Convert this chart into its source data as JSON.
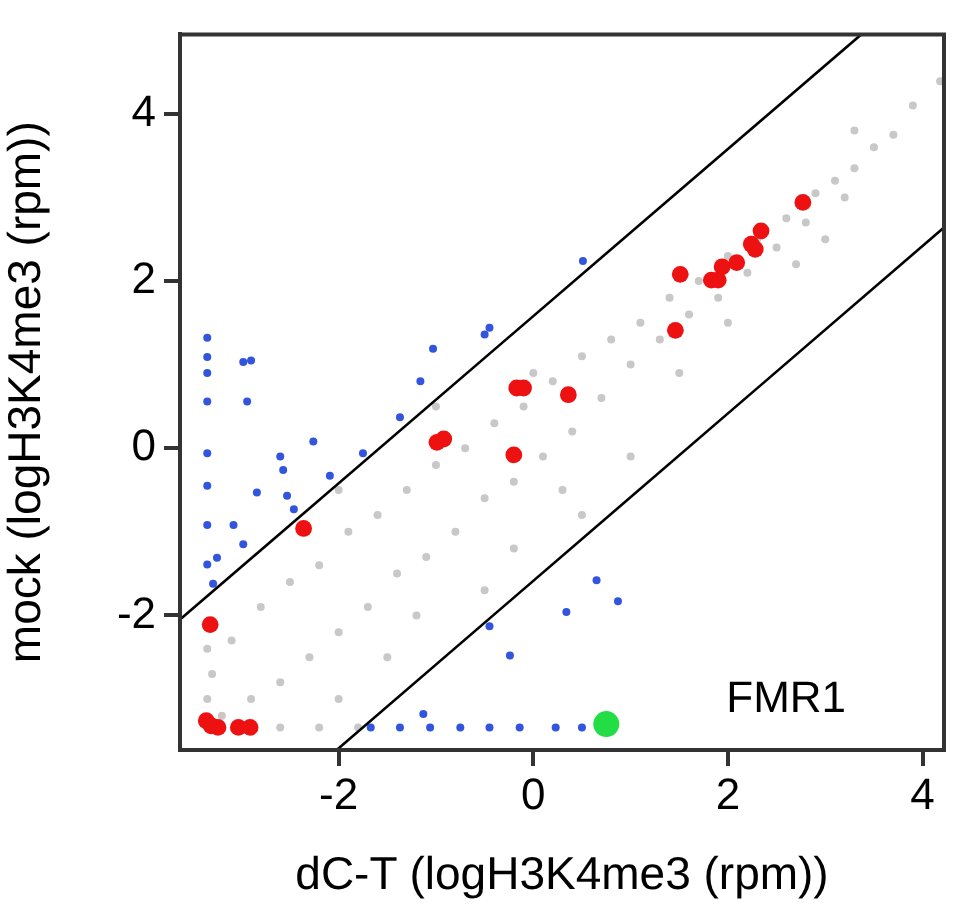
{
  "chart_data": {
    "type": "scatter",
    "xlabel": "dC-T (logH3K4me3 (rpm))",
    "ylabel": "mock (logH3K4me3 (rpm))",
    "xlim": [
      -3.63,
      4.22
    ],
    "ylim": [
      -3.61,
      4.95
    ],
    "xticks": [
      -2,
      0,
      2,
      4
    ],
    "yticks": [
      -2,
      0,
      2,
      4
    ],
    "grid": false,
    "legend": false,
    "marker": "circle",
    "annotations": [
      {
        "text": "FMR1",
        "x": 0.75,
        "y": -3.3
      }
    ],
    "series": [
      {
        "color": "#c8c8c8",
        "x": [
          4.18,
          3.9,
          3.7,
          3.5,
          3.3,
          3.1,
          3.2,
          2.9,
          2.8,
          2.6,
          2.5,
          2.3,
          2.2,
          2.0,
          1.9,
          1.7,
          1.6,
          1.4,
          1.3,
          1.1,
          1.0,
          0.8,
          0.7,
          0.5,
          0.4,
          0.2,
          0.1,
          -0.1,
          -0.2,
          -0.4,
          -0.5,
          -0.7,
          -0.8,
          -1.0,
          -1.1,
          -1.3,
          -1.4,
          -1.6,
          -1.7,
          -1.9,
          -2.0,
          -2.2,
          -2.3,
          -2.5,
          -2.6,
          -2.8,
          -2.9,
          -3.1,
          -3.2,
          -3.3,
          -2.6,
          -2.2,
          -1.8,
          -3.35,
          -3.35,
          1.0,
          0.5,
          -0.5,
          -1.5,
          -2.0,
          0.0,
          -1.0,
          -2.0,
          2.7,
          3.0,
          1.5,
          -0.2,
          0.3,
          -1.2,
          3.3,
          2.0
        ],
        "values": [
          4.39,
          4.1,
          3.75,
          3.6,
          3.35,
          3.2,
          3.0,
          3.05,
          2.7,
          2.75,
          2.4,
          2.5,
          2.1,
          2.3,
          1.8,
          2.0,
          1.6,
          1.8,
          1.3,
          1.5,
          1.0,
          1.3,
          0.6,
          1.1,
          0.2,
          0.8,
          -0.1,
          0.5,
          -0.4,
          0.3,
          -0.6,
          0.0,
          -1.0,
          -0.2,
          -1.3,
          -0.5,
          -1.5,
          -0.8,
          -1.9,
          -1.0,
          -2.2,
          -1.4,
          -2.5,
          -1.6,
          -2.8,
          -1.9,
          -3.0,
          -2.3,
          -3.2,
          -2.7,
          -3.34,
          -3.34,
          -3.34,
          -3.0,
          -2.4,
          -0.1,
          -0.8,
          -1.7,
          -2.5,
          -3.0,
          0.9,
          0.5,
          -0.5,
          2.2,
          2.5,
          0.9,
          -1.2,
          -0.5,
          -2.0,
          3.8,
          1.5
        ]
      },
      {
        "color": "#3355dd",
        "x": [
          -3.35,
          -3.35,
          -3.35,
          -2.98,
          -2.9,
          -1.03,
          -0.45,
          -0.5,
          -1.16,
          -2.94,
          -3.35,
          -3.35,
          -3.35,
          -3.35,
          -3.35,
          -2.26,
          -2.6,
          -2.57,
          -2.84,
          -2.53,
          -2.46,
          -2.09,
          -1.75,
          -1.37,
          -3.08,
          -2.98,
          -3.25,
          -3.29,
          -1.67,
          -1.37,
          -1.06,
          -0.75,
          -0.45,
          -0.14,
          0.23,
          0.5,
          -0.45,
          -0.24,
          -1.13,
          0.65,
          0.87,
          0.34,
          0.51
        ],
        "values": [
          1.32,
          1.09,
          0.9,
          1.03,
          1.05,
          1.19,
          1.44,
          1.36,
          0.8,
          0.56,
          0.56,
          -0.06,
          -0.45,
          -0.92,
          -1.39,
          0.08,
          -0.1,
          -0.26,
          -0.53,
          -0.57,
          -0.73,
          -0.33,
          -0.06,
          0.37,
          -0.92,
          -1.15,
          -1.31,
          -1.62,
          -3.34,
          -3.34,
          -3.34,
          -3.34,
          -3.34,
          -3.34,
          -3.34,
          -3.34,
          -2.13,
          -2.48,
          -3.18,
          -1.58,
          -1.83,
          -1.96,
          2.24
        ]
      },
      {
        "type": "line",
        "marker": "none",
        "color": "#000000",
        "x": [
          -3.63,
          3.37
        ],
        "values": [
          -2.05,
          4.95
        ]
      },
      {
        "type": "line",
        "marker": "none",
        "color": "#000000",
        "x": [
          -2.02,
          4.22
        ],
        "values": [
          -3.61,
          2.64
        ]
      },
      {
        "color": "#ee1111",
        "x": [
          2.77,
          2.34,
          2.24,
          2.28,
          2.09,
          1.94,
          1.83,
          1.9,
          1.51,
          1.46,
          -0.17,
          -0.1,
          0.36,
          -0.99,
          -0.92,
          -0.2,
          -2.36,
          -3.32,
          -3.36,
          -3.31,
          -3.24,
          -3.03,
          -2.91
        ],
        "values": [
          2.94,
          2.6,
          2.44,
          2.38,
          2.22,
          2.17,
          2.01,
          2.01,
          2.08,
          1.41,
          0.72,
          0.72,
          0.64,
          0.07,
          0.11,
          -0.08,
          -0.96,
          -2.11,
          -3.26,
          -3.32,
          -3.34,
          -3.34,
          -3.34
        ]
      },
      {
        "color": "#22dd44",
        "x": [
          0.75
        ],
        "values": [
          -3.3
        ]
      }
    ]
  }
}
